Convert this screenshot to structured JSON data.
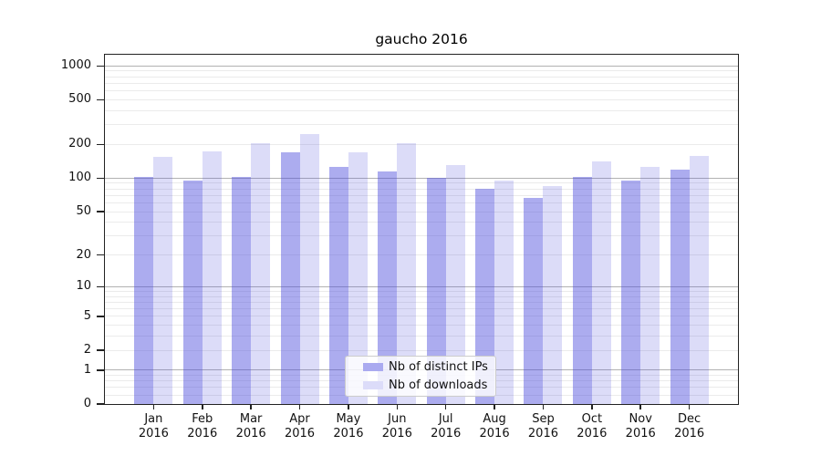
{
  "title": "gaucho 2016",
  "chart_data": {
    "type": "bar",
    "title": "gaucho 2016",
    "categories": [
      "Jan 2016",
      "Feb 2016",
      "Mar 2016",
      "Apr 2016",
      "May 2016",
      "Jun 2016",
      "Jul 2016",
      "Aug 2016",
      "Sep 2016",
      "Oct 2016",
      "Nov 2016",
      "Dec 2016"
    ],
    "series": [
      {
        "name": "Nb of distinct IPs",
        "values": [
          102,
          95,
          102,
          170,
          125,
          115,
          100,
          81,
          66,
          103,
          95,
          119
        ],
        "color": "rgba(70,70,220,0.45)",
        "swatch_color": "#aaaaf0"
      },
      {
        "name": "Nb of downloads",
        "values": [
          156,
          174,
          204,
          250,
          171,
          205,
          132,
          95,
          85,
          141,
          126,
          158
        ],
        "color": "rgba(70,70,220,0.19)",
        "swatch_color": "#dcdcf9"
      }
    ],
    "xlabel": "",
    "ylabel": "",
    "y_axis": {
      "scale": "symlog-log10(1+y)",
      "tick_values": [
        0,
        1,
        2,
        5,
        10,
        20,
        50,
        100,
        200,
        500,
        1000
      ],
      "major_grid_values": [
        1,
        10,
        100,
        1000
      ],
      "ylim": [
        0,
        1250
      ]
    },
    "grid": true,
    "legend_position": "inside-bottom-center",
    "colors": {
      "major_grid": "#b2b2b2",
      "minor_grid": "#ebebeb",
      "axis_frame": "#222222"
    }
  }
}
